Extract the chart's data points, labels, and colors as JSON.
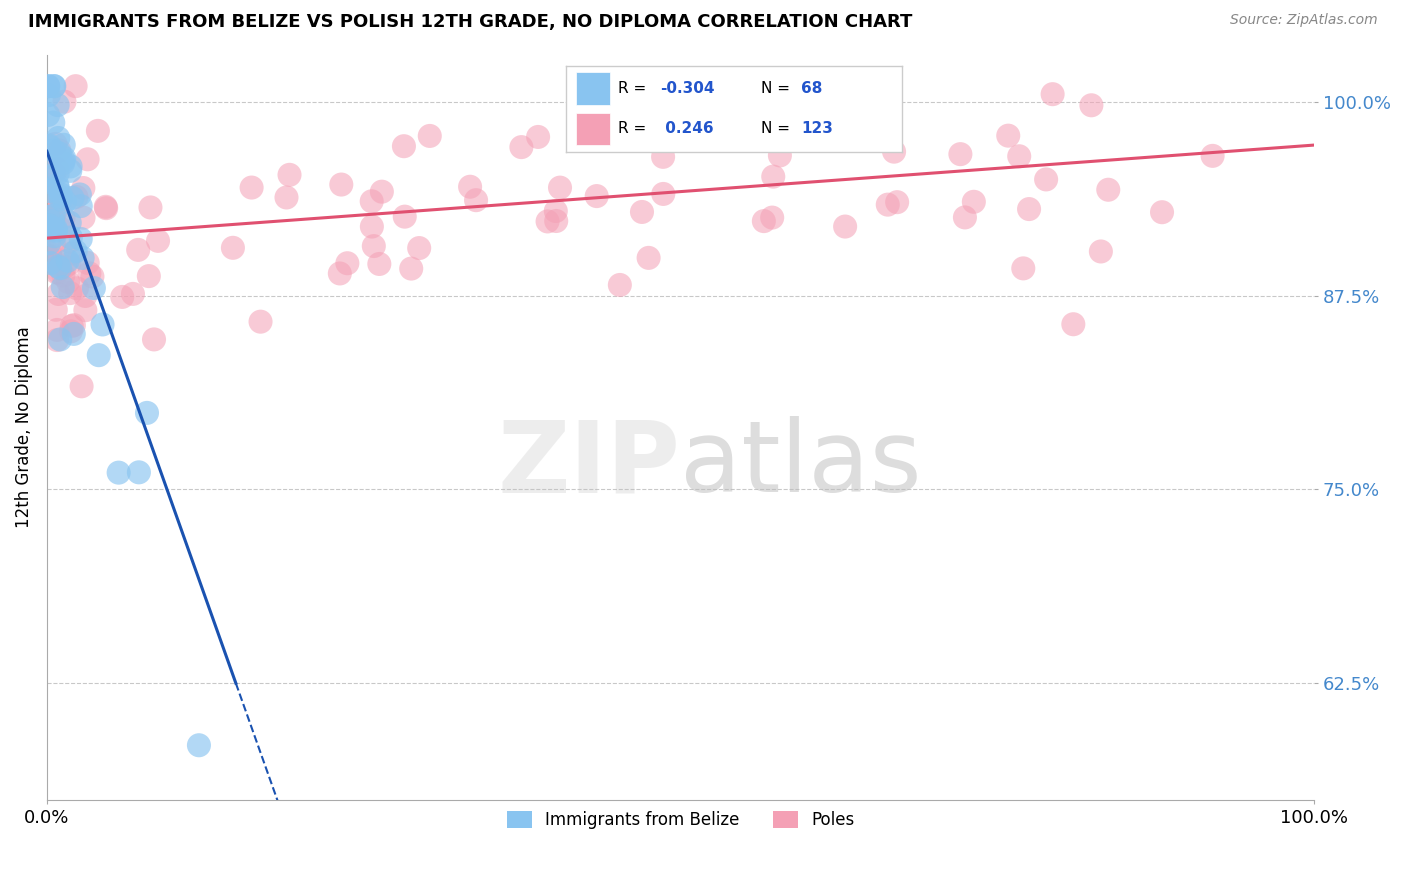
{
  "title": "IMMIGRANTS FROM BELIZE VS POLISH 12TH GRADE, NO DIPLOMA CORRELATION CHART",
  "source": "Source: ZipAtlas.com",
  "ylabel": "12th Grade, No Diploma",
  "belize_R": -0.304,
  "belize_N": 68,
  "poles_R": 0.246,
  "poles_N": 123,
  "xlim": [
    0.0,
    1.0
  ],
  "ylim": [
    0.55,
    1.03
  ],
  "yticks": [
    0.625,
    0.75,
    0.875,
    1.0
  ],
  "ytick_labels": [
    "62.5%",
    "75.0%",
    "87.5%",
    "100.0%"
  ],
  "xtick_labels": [
    "0.0%",
    "100.0%"
  ],
  "xticks": [
    0.0,
    1.0
  ],
  "belize_color": "#89C4F0",
  "poles_color": "#F4A0B5",
  "belize_line_color": "#1A52B0",
  "poles_line_color": "#E05070",
  "background_color": "#FFFFFF",
  "grid_color": "#BBBBBB",
  "legend_belize": "Immigrants from Belize",
  "legend_poles": "Poles"
}
